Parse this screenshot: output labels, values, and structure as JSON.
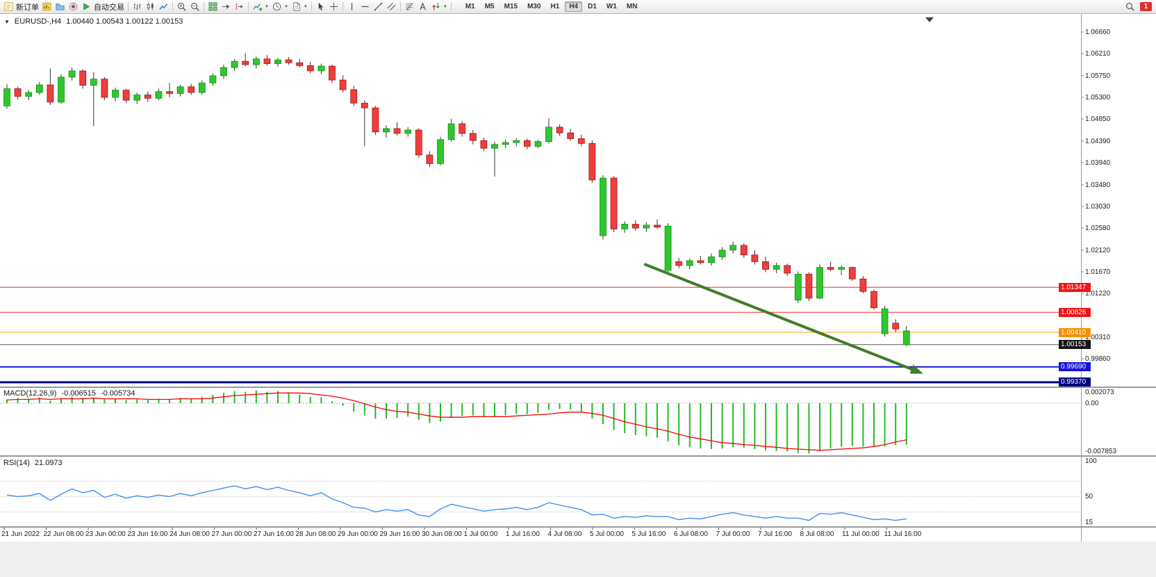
{
  "toolbar": {
    "notification_count": "1",
    "items": [
      {
        "type": "button",
        "name": "new-order-button",
        "label": "新订单",
        "icon": "new-order-icon"
      },
      {
        "type": "icon",
        "name": "new-chart-icon"
      },
      {
        "type": "icon",
        "name": "profiles-icon"
      },
      {
        "type": "icon",
        "name": "navigator-icon"
      },
      {
        "type": "button",
        "name": "autotrading-button",
        "label": "自动交易",
        "icon": "autotrade-icon"
      },
      {
        "type": "sep"
      },
      {
        "type": "icon",
        "name": "bar-chart-icon"
      },
      {
        "type": "icon",
        "name": "candlestick-chart-icon"
      },
      {
        "type": "icon",
        "name": "line-chart-icon"
      },
      {
        "type": "sep"
      },
      {
        "type": "icon",
        "name": "zoom-in-icon"
      },
      {
        "type": "icon",
        "name": "zoom-out-icon"
      },
      {
        "type": "sep"
      },
      {
        "type": "icon",
        "name": "tile-windows-icon"
      },
      {
        "type": "icon",
        "name": "auto-scroll-icon"
      },
      {
        "type": "icon",
        "name": "chart-shift-icon"
      },
      {
        "type": "sep"
      },
      {
        "type": "icon",
        "name": "indicators-icon",
        "caret": true
      },
      {
        "type": "icon",
        "name": "periods-icon",
        "caret": true
      },
      {
        "type": "icon",
        "name": "templates-icon",
        "caret": true
      },
      {
        "type": "sep"
      },
      {
        "type": "icon",
        "name": "cursor-icon"
      },
      {
        "type": "icon",
        "name": "crosshair-icon"
      },
      {
        "type": "sep"
      },
      {
        "type": "icon",
        "name": "vertical-line-icon"
      },
      {
        "type": "icon",
        "name": "horizontal-line-icon"
      },
      {
        "type": "icon",
        "name": "trendline-icon"
      },
      {
        "type": "icon",
        "name": "equidistant-channel-icon"
      },
      {
        "type": "sep"
      },
      {
        "type": "icon",
        "name": "fibonacci-icon"
      },
      {
        "type": "icon",
        "name": "text-label-icon"
      },
      {
        "type": "icon",
        "name": "arrows-icon",
        "caret": true
      },
      {
        "type": "sep"
      }
    ],
    "timeframes": [
      "M1",
      "M5",
      "M15",
      "M30",
      "H1",
      "H4",
      "D1",
      "W1",
      "MN"
    ],
    "active_timeframe": "H4"
  },
  "chart": {
    "title": "EURUSD-,H4",
    "ohlc": "1.00440 1.00543 1.00122 1.00153"
  },
  "price_axis": {
    "labels": [
      "1.06660",
      "1.06210",
      "1.05750",
      "1.05300",
      "1.04850",
      "1.04390",
      "1.03940",
      "1.03480",
      "1.03030",
      "1.02580",
      "1.02120",
      "1.01670",
      "1.01220",
      "1.00310",
      "0.99860"
    ]
  },
  "macd": {
    "title": "MACD(12,26,9)",
    "value_main": "-0.006515",
    "value_signal": "-0.005734",
    "axis_labels": [
      {
        "text": "0.002073",
        "v": 0.002073
      },
      {
        "text": "0.00",
        "v": 0
      },
      {
        "text": "-0.007853",
        "v": -0.007853
      }
    ]
  },
  "rsi": {
    "title": "RSI(14)",
    "value": "21.0973",
    "axis_labels": [
      {
        "text": "100",
        "v": 100
      },
      {
        "text": "50",
        "v": 50
      },
      {
        "text": "15",
        "v": 15
      }
    ]
  },
  "time_axis": {
    "labels": [
      "21 Jun 2022",
      "22 Jun 08:00",
      "23 Jun 00:00",
      "23 Jun 16:00",
      "24 Jun 08:00",
      "27 Jun 00:00",
      "27 Jun 16:00",
      "28 Jun 08:00",
      "29 Jun 00:00",
      "29 Jun 16:00",
      "30 Jun 08:00",
      "1 Jul 00:00",
      "1 Jul 16:00",
      "4 Jul 08:00",
      "5 Jul 00:00",
      "5 Jul 16:00",
      "6 Jul 08:00",
      "7 Jul 00:00",
      "7 Jul 16:00",
      "8 Jul 08:00",
      "11 Jul 00:00",
      "11 Jul 16:00"
    ]
  },
  "chart_data": {
    "type": "candlestick",
    "symbol": "EURUSD",
    "timeframe": "H4",
    "ylim": [
      0.9925,
      1.0705
    ],
    "colors": {
      "up": "#2ec72e",
      "up_border": "#149014",
      "down": "#ef3e3e",
      "down_border": "#a31515",
      "wick": "#333333"
    },
    "candles": [
      [
        1.0512,
        1.0558,
        1.0506,
        1.0548
      ],
      [
        1.0548,
        1.0552,
        1.0526,
        1.0532
      ],
      [
        1.0532,
        1.0545,
        1.0524,
        1.054
      ],
      [
        1.054,
        1.0562,
        1.0535,
        1.0556
      ],
      [
        1.0556,
        1.059,
        1.0514,
        1.052
      ],
      [
        1.052,
        1.0578,
        1.0516,
        1.0572
      ],
      [
        1.0572,
        1.0592,
        1.0565,
        1.0585
      ],
      [
        1.0585,
        1.0588,
        1.0548,
        1.0555
      ],
      [
        1.0555,
        1.0582,
        1.047,
        1.0568
      ],
      [
        1.0568,
        1.0572,
        1.0524,
        1.053
      ],
      [
        1.053,
        1.055,
        1.0522,
        1.0545
      ],
      [
        1.0545,
        1.0548,
        1.0518,
        1.0524
      ],
      [
        1.0524,
        1.054,
        1.0516,
        1.0535
      ],
      [
        1.0535,
        1.0542,
        1.052,
        1.0528
      ],
      [
        1.0528,
        1.0548,
        1.0524,
        1.0542
      ],
      [
        1.0542,
        1.056,
        1.053,
        1.0538
      ],
      [
        1.0538,
        1.0556,
        1.0532,
        1.0552
      ],
      [
        1.0552,
        1.0558,
        1.0535,
        1.054
      ],
      [
        1.054,
        1.0565,
        1.0536,
        1.056
      ],
      [
        1.056,
        1.058,
        1.0554,
        1.0575
      ],
      [
        1.0575,
        1.0598,
        1.0568,
        1.0592
      ],
      [
        1.0592,
        1.061,
        1.0585,
        1.0605
      ],
      [
        1.0605,
        1.0622,
        1.0595,
        1.0598
      ],
      [
        1.0598,
        1.0615,
        1.059,
        1.061
      ],
      [
        1.061,
        1.0618,
        1.0596,
        1.06
      ],
      [
        1.06,
        1.0612,
        1.0594,
        1.0608
      ],
      [
        1.0608,
        1.0614,
        1.0598,
        1.0602
      ],
      [
        1.0602,
        1.061,
        1.0592,
        1.0596
      ],
      [
        1.0596,
        1.0604,
        1.058,
        1.0585
      ],
      [
        1.0585,
        1.06,
        1.0578,
        1.0595
      ],
      [
        1.0595,
        1.0598,
        1.056,
        1.0566
      ],
      [
        1.0566,
        1.0576,
        1.054,
        1.0546
      ],
      [
        1.0546,
        1.0554,
        1.0512,
        1.0518
      ],
      [
        1.0518,
        1.0524,
        1.0428,
        1.0508
      ],
      [
        1.0508,
        1.0512,
        1.0452,
        1.0458
      ],
      [
        1.0458,
        1.0472,
        1.0446,
        1.0465
      ],
      [
        1.0465,
        1.0478,
        1.045,
        1.0455
      ],
      [
        1.0455,
        1.0468,
        1.0448,
        1.0462
      ],
      [
        1.0462,
        1.0466,
        1.0404,
        1.041
      ],
      [
        1.041,
        1.0418,
        1.0385,
        1.0392
      ],
      [
        1.0392,
        1.0448,
        1.0388,
        1.0442
      ],
      [
        1.0442,
        1.0485,
        1.0438,
        1.0475
      ],
      [
        1.0475,
        1.048,
        1.0448,
        1.0455
      ],
      [
        1.0455,
        1.0462,
        1.0432,
        1.044
      ],
      [
        1.044,
        1.0446,
        1.0418,
        1.0424
      ],
      [
        1.0424,
        1.0438,
        1.0365,
        1.0432
      ],
      [
        1.0432,
        1.0442,
        1.0425,
        1.0436
      ],
      [
        1.0436,
        1.0445,
        1.0428,
        1.044
      ],
      [
        1.044,
        1.0444,
        1.0422,
        1.0428
      ],
      [
        1.0428,
        1.0442,
        1.0424,
        1.0438
      ],
      [
        1.0438,
        1.0487,
        1.0434,
        1.0468
      ],
      [
        1.0468,
        1.0474,
        1.045,
        1.0456
      ],
      [
        1.0456,
        1.0464,
        1.044,
        1.0444
      ],
      [
        1.0444,
        1.0452,
        1.0428,
        1.0434
      ],
      [
        1.0434,
        1.044,
        1.0352,
        1.0358
      ],
      [
        1.0242,
        1.0368,
        1.0234,
        1.0362
      ],
      [
        1.0362,
        1.0366,
        1.025,
        1.0256
      ],
      [
        1.0256,
        1.0272,
        1.0248,
        1.0266
      ],
      [
        1.0266,
        1.0274,
        1.0252,
        1.0258
      ],
      [
        1.0258,
        1.027,
        1.025,
        1.0264
      ],
      [
        1.0264,
        1.0276,
        1.0256,
        1.026
      ],
      [
        1.017,
        1.0268,
        1.0162,
        1.0262
      ],
      [
        1.0188,
        1.0196,
        1.0174,
        1.018
      ],
      [
        1.018,
        1.0194,
        1.0172,
        1.019
      ],
      [
        1.019,
        1.02,
        1.0182,
        1.0186
      ],
      [
        1.0186,
        1.0205,
        1.018,
        1.0198
      ],
      [
        1.0198,
        1.0218,
        1.0192,
        1.0212
      ],
      [
        1.0212,
        1.023,
        1.0205,
        1.0222
      ],
      [
        1.0222,
        1.0226,
        1.0196,
        1.0202
      ],
      [
        1.0202,
        1.0212,
        1.0182,
        1.0188
      ],
      [
        1.0188,
        1.0198,
        1.0166,
        1.0172
      ],
      [
        1.0172,
        1.0186,
        1.0164,
        1.018
      ],
      [
        1.018,
        1.0184,
        1.0158,
        1.0164
      ],
      [
        1.0108,
        1.0168,
        1.0102,
        1.0162
      ],
      [
        1.0162,
        1.0166,
        1.0106,
        1.0112
      ],
      [
        1.0112,
        1.0182,
        1.011,
        1.0176
      ],
      [
        1.0176,
        1.0188,
        1.0168,
        1.0172
      ],
      [
        1.0172,
        1.018,
        1.016,
        1.0176
      ],
      [
        1.0176,
        1.0178,
        1.0148,
        1.0152
      ],
      [
        1.0152,
        1.0158,
        1.0122,
        1.0126
      ],
      [
        1.0126,
        1.013,
        1.0088,
        1.0092
      ],
      [
        1.0038,
        1.0096,
        1.0032,
        1.009
      ],
      [
        1.006,
        1.0068,
        1.0042,
        1.0048
      ],
      [
        1.0044,
        1.00543,
        1.00122,
        1.00153,
        "up"
      ]
    ],
    "hlines": [
      {
        "price": 1.01347,
        "label": "1.01347",
        "color": "#ff2020",
        "badge_color": "#f01414",
        "width": 1
      },
      {
        "price": 1.00826,
        "label": "1.00826",
        "color": "#ff2020",
        "badge_color": "#f01414",
        "width": 1
      },
      {
        "price": 1.0041,
        "label": "1.00410",
        "color": "#ff9800",
        "badge_color": "#f59000",
        "width": 1
      },
      {
        "price": 1.00153,
        "label": "1.00153",
        "color": "#555555",
        "badge_color": "#141414",
        "width": 1
      },
      {
        "price": 0.9969,
        "label": "0.99690",
        "color": "#1414e0",
        "badge_color": "#1414d6",
        "width": 2
      },
      {
        "price": 0.9937,
        "label": "0.99370",
        "color": "#000080",
        "badge_color": "#000080",
        "width": 3
      }
    ],
    "trend_arrow": {
      "from_index": 58.8,
      "from_price": 1.0183,
      "to_index": 84.3,
      "to_price": 0.9957,
      "color": "#3f7d28"
    },
    "indicators": {
      "macd": {
        "params": "12,26,9",
        "ylim": [
          -0.007853,
          0.002073
        ],
        "colors": {
          "histogram": "#22bb22",
          "signal": "#ff0000",
          "zero_line": "#b8b8b8"
        },
        "histogram": [
          0.0006,
          0.0008,
          0.0007,
          0.0009,
          0.0004,
          0.0008,
          0.001,
          0.0008,
          0.0009,
          0.0006,
          0.0007,
          0.0005,
          0.0006,
          0.0005,
          0.0007,
          0.0006,
          0.0008,
          0.0007,
          0.001,
          0.0013,
          0.0016,
          0.0019,
          0.0018,
          0.002,
          0.0018,
          0.0019,
          0.0017,
          0.0014,
          0.001,
          0.0009,
          0.0003,
          -0.0004,
          -0.0013,
          -0.0019,
          -0.0024,
          -0.0024,
          -0.0023,
          -0.0021,
          -0.0026,
          -0.0031,
          -0.0029,
          -0.0023,
          -0.002,
          -0.0019,
          -0.0021,
          -0.0021,
          -0.0019,
          -0.0017,
          -0.0017,
          -0.0015,
          -0.001,
          -0.0009,
          -0.001,
          -0.0013,
          -0.0024,
          -0.0033,
          -0.0042,
          -0.0047,
          -0.005,
          -0.0052,
          -0.0054,
          -0.006,
          -0.0066,
          -0.0069,
          -0.0071,
          -0.0072,
          -0.0071,
          -0.0069,
          -0.007,
          -0.0072,
          -0.0074,
          -0.0075,
          -0.0076,
          -0.0078,
          -0.0079,
          -0.0075,
          -0.0071,
          -0.0068,
          -0.0067,
          -0.0068,
          -0.0069,
          -0.0068,
          -0.0066,
          -0.006515
        ],
        "signal": [
          0.0005,
          0.0006,
          0.0006,
          0.0007,
          0.0006,
          0.0007,
          0.0007,
          0.0007,
          0.0008,
          0.0007,
          0.0007,
          0.0007,
          0.0007,
          0.0006,
          0.0006,
          0.0006,
          0.0007,
          0.0007,
          0.0007,
          0.0008,
          0.001,
          0.0012,
          0.0013,
          0.0014,
          0.0015,
          0.0016,
          0.0016,
          0.0016,
          0.0015,
          0.0013,
          0.0011,
          0.0008,
          0.0004,
          -0.0001,
          -0.0006,
          -0.001,
          -0.0013,
          -0.0014,
          -0.0017,
          -0.002,
          -0.0022,
          -0.0022,
          -0.0022,
          -0.0021,
          -0.0021,
          -0.0021,
          -0.0021,
          -0.002,
          -0.0019,
          -0.0018,
          -0.0017,
          -0.0015,
          -0.0014,
          -0.0014,
          -0.0016,
          -0.0019,
          -0.0024,
          -0.0029,
          -0.0033,
          -0.0037,
          -0.004,
          -0.0044,
          -0.0049,
          -0.0053,
          -0.0056,
          -0.0059,
          -0.0062,
          -0.0063,
          -0.0065,
          -0.0066,
          -0.0068,
          -0.0069,
          -0.0071,
          -0.0072,
          -0.0073,
          -0.0074,
          -0.0073,
          -0.0072,
          -0.0071,
          -0.007,
          -0.0068,
          -0.0065,
          -0.0061,
          -0.005734
        ]
      },
      "rsi": {
        "params": "14",
        "ylim": [
          15,
          100
        ],
        "levels": [
          70,
          50,
          30
        ],
        "color": "#3f8fef",
        "values": [
          52,
          50,
          51,
          54,
          45,
          53,
          60,
          55,
          58,
          49,
          53,
          48,
          51,
          49,
          52,
          50,
          54,
          51,
          55,
          58,
          61,
          64,
          60,
          63,
          59,
          62,
          58,
          55,
          51,
          55,
          47,
          42,
          36,
          35,
          30,
          33,
          31,
          33,
          26,
          24,
          34,
          40,
          37,
          34,
          31,
          33,
          34,
          36,
          33,
          36,
          42,
          39,
          36,
          33,
          26,
          27,
          22,
          24,
          23,
          25,
          24,
          24,
          20,
          22,
          21,
          24,
          27,
          29,
          26,
          24,
          22,
          24,
          22,
          22,
          19,
          28,
          27,
          29,
          26,
          23,
          20,
          21,
          19,
          21.0973
        ]
      }
    }
  }
}
